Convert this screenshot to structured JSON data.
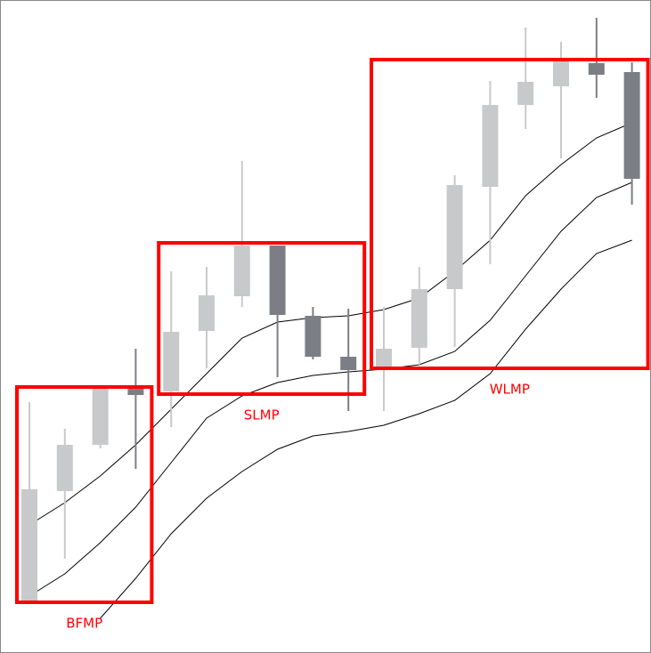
{
  "chart_data": {
    "type": "candlestick",
    "categories": [
      null,
      null,
      null,
      null,
      null,
      null,
      null,
      null,
      null,
      null,
      null,
      null,
      null,
      null,
      null,
      null,
      null,
      null
    ],
    "open": [
      59,
      182,
      234,
      297,
      294,
      362,
      401,
      458,
      379,
      333,
      322,
      343,
      409,
      524,
      616,
      637,
      663,
      653
    ],
    "high": [
      282,
      252,
      299,
      342,
      429,
      434,
      553,
      458,
      389,
      387,
      389,
      434,
      537,
      643,
      703,
      687,
      714,
      664
    ],
    "low": [
      59,
      106,
      230,
      207,
      254,
      320,
      389,
      310,
      330,
      272,
      272,
      324,
      344,
      437,
      589,
      556,
      624,
      504
    ],
    "close": [
      184,
      234,
      299,
      290,
      361,
      402,
      458,
      380,
      333,
      318,
      342,
      409,
      526,
      616,
      642,
      666,
      650,
      533
    ],
    "up_color": "#c8c9cb",
    "down_color": "#7b7e85",
    "lines": [
      {
        "color": "#000000",
        "values": [
          144,
          169,
          199,
          234,
          274,
          314,
          354,
          372,
          377,
          379,
          386,
          399,
          429,
          464,
          514,
          549,
          579,
          596
        ]
      },
      {
        "color": "#000000",
        "values": [
          64,
          89,
          124,
          164,
          214,
          264,
          289,
          304,
          312,
          316,
          319,
          324,
          339,
          374,
          424,
          474,
          512,
          529
        ]
      },
      {
        "color": "#000000",
        "values": [
          null,
          null,
          39,
          84,
          134,
          174,
          204,
          229,
          244,
          249,
          256,
          269,
          284,
          314,
          364,
          409,
          449,
          464
        ]
      }
    ],
    "annotations": [
      {
        "label": "BFMP",
        "from": 0,
        "to": 3,
        "low": 57,
        "high": 299
      },
      {
        "label": "SLMP",
        "from": 4,
        "to": 9,
        "low": 291,
        "high": 461
      },
      {
        "label": "WLMP",
        "from": 10,
        "to": 17,
        "low": 320,
        "high": 667
      }
    ],
    "annotation_color": "#ff0000",
    "ylim": [
      0,
      734
    ]
  }
}
